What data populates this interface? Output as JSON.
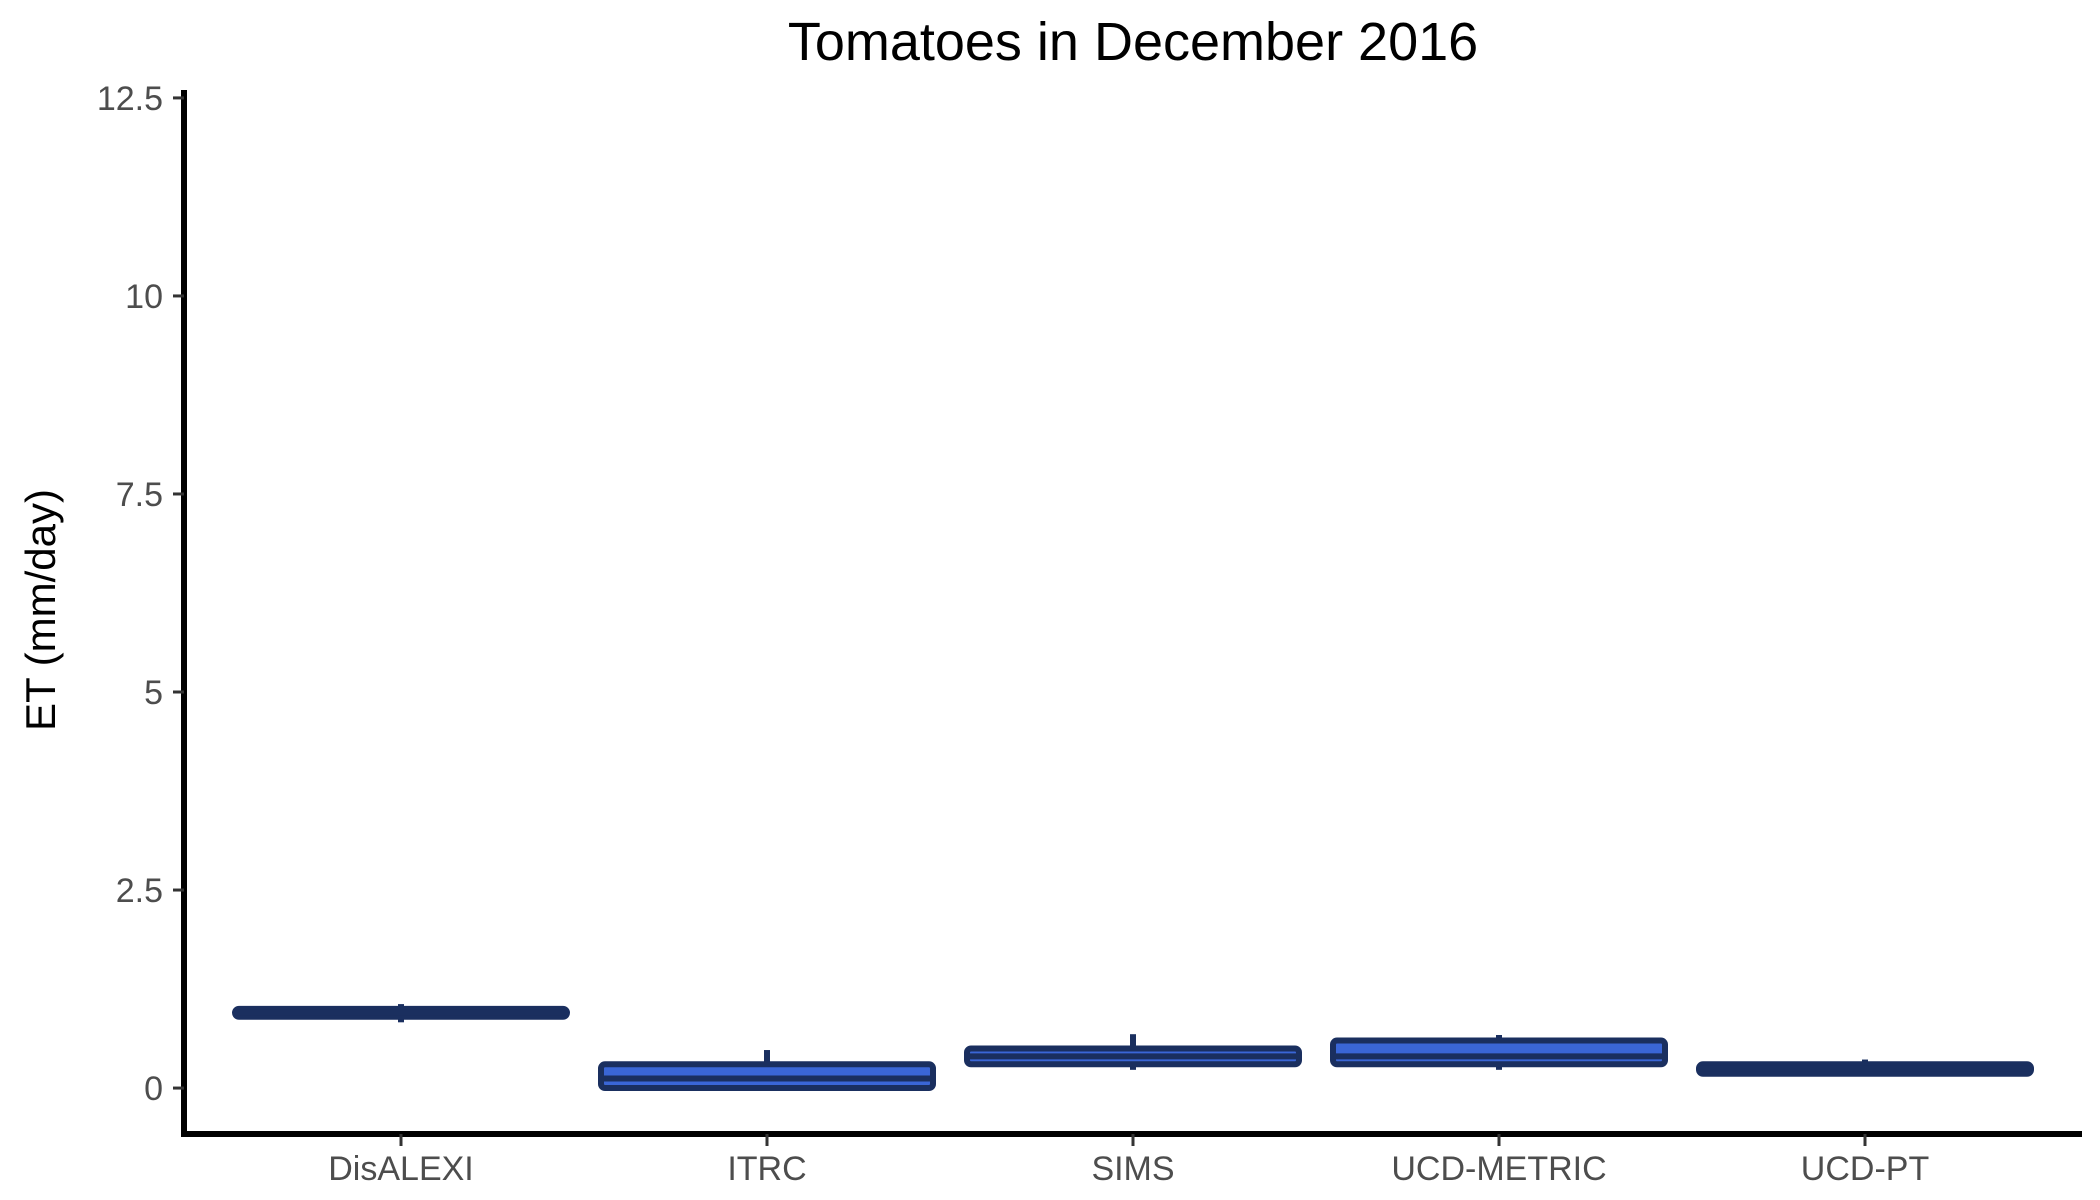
{
  "chart_data": {
    "type": "boxplot",
    "title": "Tomatoes in December 2016",
    "xlabel": "",
    "ylabel": "ET (mm/day)",
    "ylim": [
      -0.58,
      12.6
    ],
    "yticks": [
      0,
      2.5,
      5,
      7.5,
      10,
      12.5
    ],
    "ytick_labels": [
      "0",
      "2.5",
      "5",
      "7.5",
      "10",
      "12.5"
    ],
    "grid": false,
    "legend": "none",
    "colors": {
      "fill": "#3a66d6",
      "outline": "#1a2f5f",
      "axis": "#000000"
    },
    "categories": [
      "DisALEXI",
      "ITRC",
      "SIMS",
      "UCD-METRIC",
      "UCD-PT"
    ],
    "boxes": [
      {
        "category": "DisALEXI",
        "min": 0.83,
        "q1": 0.9,
        "median": 0.95,
        "q3": 1.0,
        "max": 1.06
      },
      {
        "category": "ITRC",
        "min": 0.0,
        "q1": 0.0,
        "median": 0.12,
        "q3": 0.3,
        "max": 0.48
      },
      {
        "category": "SIMS",
        "min": 0.23,
        "q1": 0.3,
        "median": 0.4,
        "q3": 0.5,
        "max": 0.68
      },
      {
        "category": "UCD-METRIC",
        "min": 0.23,
        "q1": 0.3,
        "median": 0.4,
        "q3": 0.6,
        "max": 0.67
      },
      {
        "category": "UCD-PT",
        "min": 0.18,
        "q1": 0.18,
        "median": 0.25,
        "q3": 0.3,
        "max": 0.36
      }
    ]
  }
}
